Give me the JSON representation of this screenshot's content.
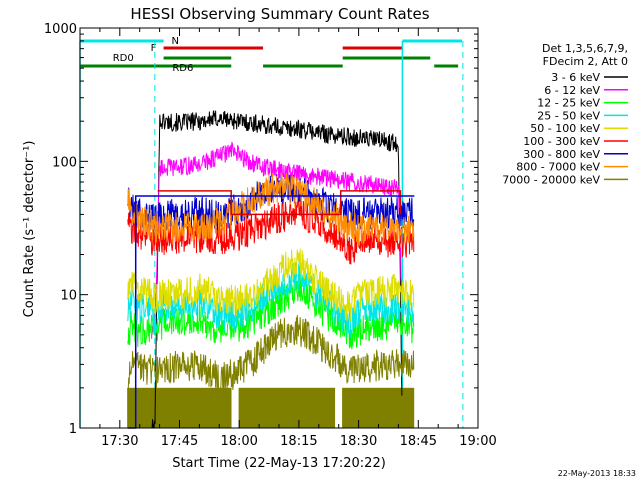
{
  "chart_data": {
    "type": "line",
    "title": "HESSI Observing Summary Count Rates",
    "xlabel": "Start Time (22-May-13 17:20:22)",
    "ylabel": "Count Rate (s⁻¹ detector⁻¹)",
    "yscale": "log",
    "ylim": [
      1,
      1000
    ],
    "xlim_minutes_from_1720": [
      0,
      100
    ],
    "x_ticks": [
      "17:30",
      "17:45",
      "18:00",
      "18:15",
      "18:30",
      "18:45",
      "19:00"
    ],
    "y_ticks": [
      "1",
      "10",
      "100",
      "1000"
    ],
    "legend": {
      "header": [
        "Det 1,3,5,6,7,9,",
        "FDecim 2, Att 0"
      ],
      "placement": "right"
    },
    "footer_date": "22-May-2013 18:33",
    "flags": [
      {
        "label": "N",
        "color": "#00e5e5",
        "segments": [
          [
            0,
            21
          ],
          [
            81,
            96
          ]
        ]
      },
      {
        "label": "F",
        "color": "#dd0000",
        "segments": [
          [
            21,
            46
          ],
          [
            66,
            81
          ]
        ]
      },
      {
        "label": "RD0",
        "color": "#008000",
        "segments": [
          [
            21,
            38
          ],
          [
            66,
            88
          ]
        ]
      },
      {
        "label": "RD6",
        "color": "#008000",
        "segments": [
          [
            0,
            38
          ],
          [
            46,
            66
          ],
          [
            89,
            95
          ]
        ]
      }
    ],
    "markers": {
      "solid_cyan_minutes": [
        0,
        81
      ],
      "dashed_cyan_minutes": [
        18.8,
        96.2
      ]
    },
    "series": [
      {
        "name": "3 - 6 keV",
        "color": "#000000",
        "x": [
          18,
          18.8,
          20,
          25,
          30,
          35,
          40,
          45,
          50,
          55,
          60,
          65,
          70,
          75,
          80,
          81
        ],
        "y": [
          1,
          1,
          200,
          195,
          200,
          210,
          200,
          190,
          180,
          175,
          165,
          155,
          150,
          145,
          135,
          1
        ]
      },
      {
        "name": "6 - 12 keV",
        "color": "#ff00ff",
        "x": [
          18,
          19,
          20,
          25,
          30,
          35,
          38,
          40,
          45,
          50,
          55,
          60,
          65,
          70,
          75,
          80,
          81
        ],
        "y": [
          5,
          8,
          90,
          90,
          95,
          110,
          120,
          110,
          92,
          85,
          80,
          77,
          72,
          69,
          66,
          63,
          7
        ]
      },
      {
        "name": "12 - 25 keV",
        "color": "#00ff00",
        "x": [
          12,
          13,
          15,
          18,
          19,
          20,
          25,
          30,
          32,
          35,
          40,
          45,
          50,
          55,
          60,
          65,
          68,
          70,
          75,
          80,
          84
        ],
        "y": [
          5,
          6,
          5,
          6,
          5.5,
          6,
          6.2,
          6.5,
          6,
          5.3,
          5.5,
          7,
          9,
          11.5,
          8,
          6,
          5,
          5.4,
          5.8,
          6,
          5.6
        ]
      },
      {
        "name": "25 - 50 keV",
        "color": "#00e5e5",
        "x": [
          12,
          13,
          15,
          18,
          19,
          20,
          25,
          30,
          32,
          35,
          40,
          45,
          50,
          55,
          60,
          65,
          68,
          70,
          75,
          80,
          84
        ],
        "y": [
          7,
          9,
          8,
          8,
          6,
          8,
          8,
          8.5,
          8.5,
          7,
          7,
          9,
          12,
          14,
          10,
          7,
          6,
          7.5,
          7.8,
          8,
          7.5
        ]
      },
      {
        "name": "50 - 100 keV",
        "color": "#dddd00",
        "x": [
          12,
          13,
          15,
          18,
          19,
          20,
          25,
          30,
          32,
          35,
          40,
          45,
          50,
          55,
          60,
          65,
          68,
          70,
          75,
          80,
          84
        ],
        "y": [
          10,
          12,
          11,
          10,
          9,
          10,
          10,
          11,
          10.5,
          9,
          9,
          11,
          15,
          18,
          12,
          9,
          8,
          10,
          10.5,
          11,
          10
        ]
      },
      {
        "name": "100 - 300 keV",
        "color": "#ff0000",
        "x": [
          12,
          13,
          15,
          18,
          19,
          20,
          25,
          30,
          32,
          35,
          40,
          45,
          50,
          55,
          60,
          65,
          68,
          70,
          75,
          80,
          84
        ],
        "y": [
          40,
          32,
          28,
          25,
          25,
          26,
          26,
          27,
          27,
          26,
          28,
          32,
          38,
          42,
          35,
          27,
          22,
          24,
          25,
          25,
          25
        ]
      },
      {
        "name": "300 - 800 keV",
        "color": "#0000cc",
        "x": [
          12,
          13,
          15,
          18,
          19,
          20,
          25,
          30,
          32,
          35,
          40,
          45,
          50,
          55,
          60,
          65,
          68,
          70,
          75,
          80,
          84
        ],
        "y": [
          50,
          45,
          40,
          38,
          38,
          40,
          40,
          42,
          41,
          38,
          45,
          55,
          63,
          60,
          50,
          42,
          40,
          40,
          41,
          41,
          41
        ]
      },
      {
        "name": "800 - 7000 keV",
        "color": "#ff8c00",
        "x": [
          12,
          13,
          15,
          18,
          19,
          20,
          25,
          30,
          32,
          35,
          40,
          45,
          50,
          55,
          60,
          65,
          68,
          70,
          75,
          80,
          84
        ],
        "y": [
          50,
          42,
          37,
          33,
          31,
          31,
          32,
          33,
          33,
          35,
          44,
          56,
          66,
          58,
          46,
          37,
          32,
          31,
          31,
          31,
          30
        ]
      },
      {
        "name": "7000 - 20000 keV",
        "color": "#808000",
        "x": [
          12,
          13,
          15,
          18,
          19,
          20,
          25,
          30,
          32,
          35,
          40,
          45,
          50,
          55,
          60,
          65,
          68,
          70,
          75,
          80,
          84
        ],
        "y": [
          2,
          3,
          2.8,
          2.7,
          2.5,
          2.8,
          2.9,
          3,
          2.6,
          2.4,
          2.6,
          3.5,
          5,
          5.5,
          4.3,
          3.2,
          2.6,
          2.8,
          2.9,
          3,
          2.9
        ]
      }
    ],
    "envelopes": [
      {
        "color": "#dd0000",
        "x": [
          19.5,
          38,
          38,
          65.5,
          65.5,
          80.5,
          80.5
        ],
        "y": [
          60,
          60,
          40,
          40,
          60,
          60,
          40
        ]
      },
      {
        "color": "#0000cc",
        "x": [
          12,
          14,
          14,
          84
        ],
        "y": [
          1,
          1,
          55,
          55
        ]
      }
    ],
    "noise_floor": {
      "color": "#808000",
      "x_ranges": [
        [
          12,
          38
        ],
        [
          40,
          64
        ],
        [
          66,
          84
        ]
      ],
      "y_range": [
        1,
        2
      ]
    }
  }
}
